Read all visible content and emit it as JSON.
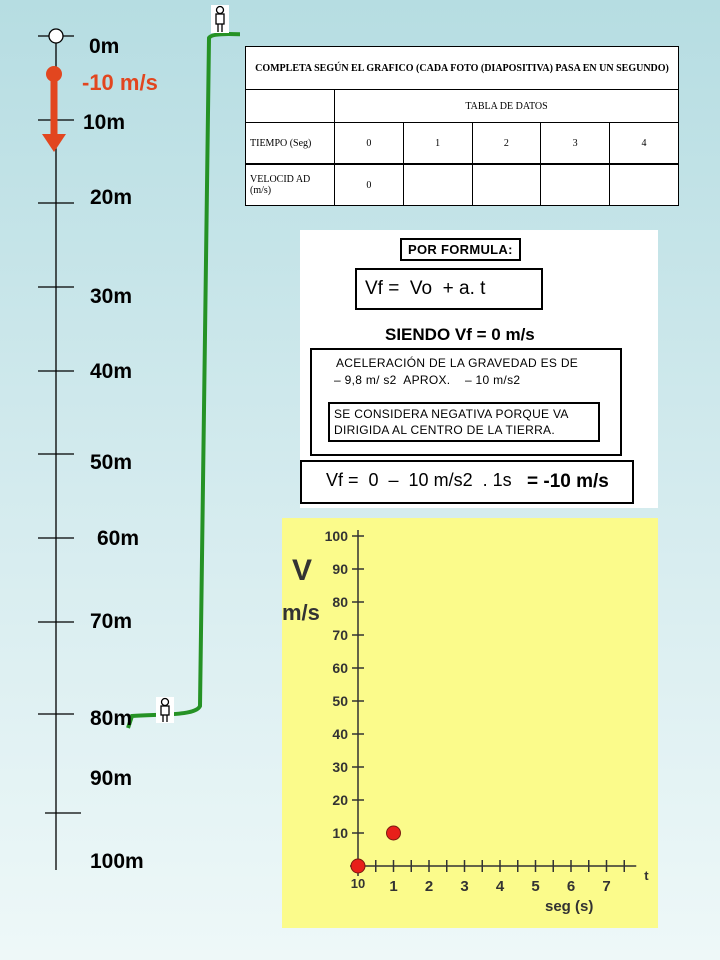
{
  "scale": {
    "labels": [
      "0m",
      "10m",
      "20m",
      "30m",
      "40m",
      "50m",
      "60m",
      "70m",
      "80m",
      "90m",
      "100m"
    ],
    "speed_label": "-10 m/s"
  },
  "table": {
    "header": "COMPLETA SEGÚN EL GRAFICO  (CADA FOTO (DIAPOSITIVA) PASA EN UN SEGUNDO)",
    "subheader": "TABLA DE DATOS",
    "time_label": "TIEMPO (Seg)",
    "time_values": [
      "0",
      "1",
      "2",
      "3",
      "4"
    ],
    "velocity_label": "VELOCID AD (m/s)",
    "velocity_values": [
      "0",
      "",
      "",
      "",
      ""
    ]
  },
  "formula": {
    "por_formula": "POR FORMULA:",
    "main_formula": "Vf =  Vo  + a. t",
    "siendo": "SIENDO Vf = 0 m/s",
    "gravity_line1": "ACELERACIÓN DE LA GRAVEDAD ES DE",
    "gravity_line2": "– 9,8 m/ s2  APROX.    – 10 m/s2",
    "negative_note": "SE CONSIDERA NEGATIVA PORQUE VA DIRIGIDA AL CENTRO DE LA TIERRA.",
    "calc_left": "Vf =  0  –  10 m/s2  . 1s",
    "calc_result": "= -10 m/s"
  },
  "chart_data": {
    "type": "scatter",
    "ylabel_top": "V",
    "ylabel_bottom": "m/s",
    "xlabel": "seg (s)",
    "x_axis_letter": "t",
    "x_ticks": [
      "1",
      "2",
      "3",
      "4",
      "5",
      "6",
      "7"
    ],
    "x_origin_label": "10",
    "y_ticks": [
      "10",
      "20",
      "30",
      "40",
      "50",
      "60",
      "70",
      "80",
      "90",
      "100"
    ],
    "xlim": [
      0,
      7.5
    ],
    "ylim": [
      0,
      100
    ],
    "points": [
      {
        "x": 0,
        "y": 0
      },
      {
        "x": 1,
        "y": 10
      }
    ],
    "point_color": "#e8201a"
  }
}
